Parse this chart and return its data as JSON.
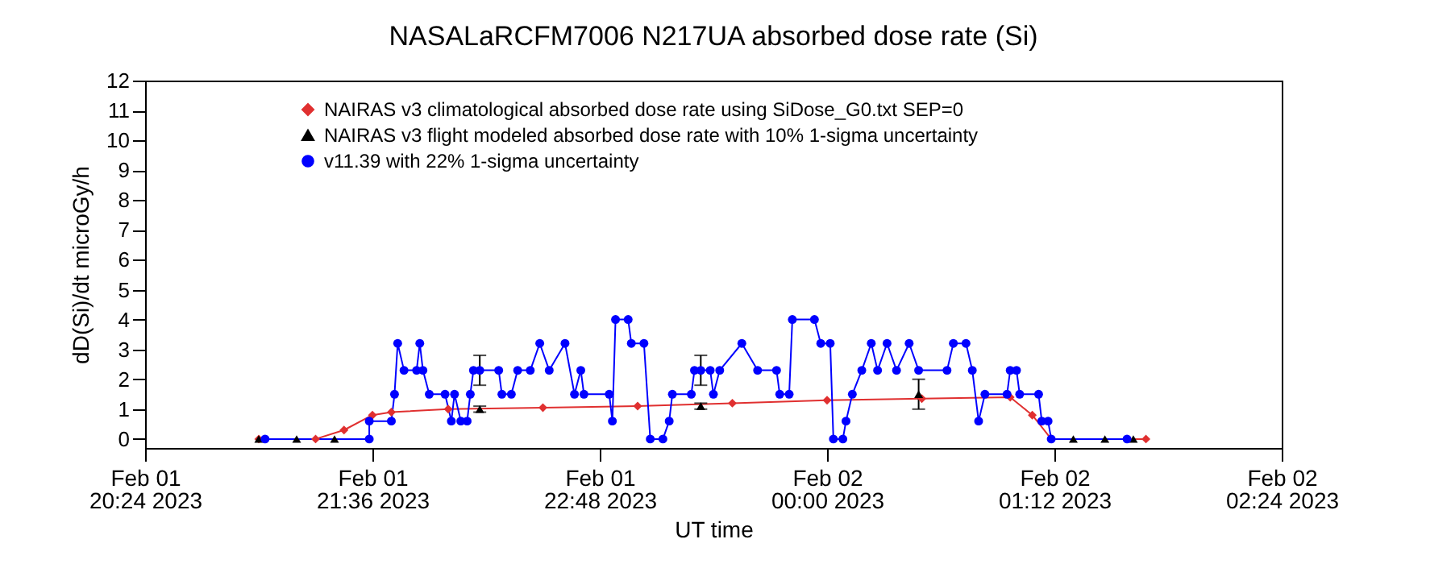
{
  "chart_data": {
    "type": "line",
    "title": "NASALaRCFM7006  N217UA absorbed dose rate (Si)",
    "xlabel": "UT time",
    "ylabel": "dD(Si)/dt microGy/h",
    "xlim": [
      "2023-02-01T20:24",
      "2023-02-02T02:24"
    ],
    "xticks": [
      {
        "value": "2023-02-01T20:24",
        "label": "Feb 01\n20:24 2023"
      },
      {
        "value": "2023-02-01T21:36",
        "label": "Feb 01\n21:36 2023"
      },
      {
        "value": "2023-02-01T22:48",
        "label": "Feb 01\n22:48 2023"
      },
      {
        "value": "2023-02-02T00:00",
        "label": "Feb 02\n00:00 2023"
      },
      {
        "value": "2023-02-02T01:12",
        "label": "Feb 02\n01:12 2023"
      },
      {
        "value": "2023-02-02T02:24",
        "label": "Feb 02\n02:24 2023"
      }
    ],
    "ylim": [
      -0.3,
      12
    ],
    "yticks": [
      0,
      1,
      2,
      3,
      4,
      5,
      6,
      7,
      8,
      9,
      10,
      11,
      12
    ],
    "grid": false,
    "legend": "top left",
    "series": [
      {
        "name": "NAIRAS v3 climatological absorbed dose rate using SiDose_G0.txt SEP=0",
        "marker": "diamond",
        "color": "#e03030",
        "x": [
          "2023-02-01T21:00",
          "2023-02-01T21:18",
          "2023-02-01T21:27",
          "2023-02-01T21:36",
          "2023-02-01T21:42",
          "2023-02-01T22:00",
          "2023-02-01T22:30",
          "2023-02-01T23:00",
          "2023-02-01T23:30",
          "2023-02-02T00:00",
          "2023-02-02T00:30",
          "2023-02-02T00:58",
          "2023-02-02T01:05",
          "2023-02-02T01:11",
          "2023-02-02T01:41"
        ],
        "values": [
          0,
          0,
          0.3,
          0.8,
          0.9,
          1.0,
          1.05,
          1.1,
          1.2,
          1.3,
          1.35,
          1.4,
          0.8,
          0,
          0
        ]
      },
      {
        "name": "NAIRAS v3 flight modeled absorbed dose rate with 10% 1-sigma uncertainty",
        "type": "scatter",
        "marker": "triangle",
        "color": "#000000",
        "x": [
          "2023-02-01T21:00",
          "2023-02-01T21:12",
          "2023-02-01T21:24",
          "2023-02-01T22:10",
          "2023-02-01T23:20",
          "2023-02-02T00:29",
          "2023-02-02T01:18",
          "2023-02-02T01:28",
          "2023-02-02T01:37"
        ],
        "values": [
          0,
          0,
          0,
          1.0,
          1.1,
          1.5,
          0,
          0,
          0
        ],
        "errors": [
          null,
          null,
          null,
          0.1,
          0.1,
          0.5,
          null,
          null,
          null
        ]
      },
      {
        "name": "v11.39 with 22% 1-sigma uncertainty",
        "marker": "circle",
        "color": "#0000ff",
        "x": [
          "2023-02-01T21:02",
          "2023-02-01T21:35",
          "2023-02-01T21:35",
          "2023-02-01T21:42",
          "2023-02-01T21:43",
          "2023-02-01T21:44",
          "2023-02-01T21:46",
          "2023-02-01T21:50",
          "2023-02-01T21:51",
          "2023-02-01T21:52",
          "2023-02-01T21:54",
          "2023-02-01T21:59",
          "2023-02-01T22:01",
          "2023-02-01T22:02",
          "2023-02-01T22:04",
          "2023-02-01T22:06",
          "2023-02-01T22:07",
          "2023-02-01T22:08",
          "2023-02-01T22:10",
          "2023-02-01T22:16",
          "2023-02-01T22:17",
          "2023-02-01T22:20",
          "2023-02-01T22:22",
          "2023-02-01T22:26",
          "2023-02-01T22:29",
          "2023-02-01T22:32",
          "2023-02-01T22:37",
          "2023-02-01T22:40",
          "2023-02-01T22:42",
          "2023-02-01T22:43",
          "2023-02-01T22:51",
          "2023-02-01T22:52",
          "2023-02-01T22:53",
          "2023-02-01T22:57",
          "2023-02-01T22:58",
          "2023-02-01T23:02",
          "2023-02-01T23:04",
          "2023-02-01T23:08",
          "2023-02-01T23:10",
          "2023-02-01T23:11",
          "2023-02-01T23:17",
          "2023-02-01T23:18",
          "2023-02-01T23:20",
          "2023-02-01T23:23",
          "2023-02-01T23:24",
          "2023-02-01T23:26",
          "2023-02-01T23:33",
          "2023-02-01T23:38",
          "2023-02-01T23:44",
          "2023-02-01T23:45",
          "2023-02-01T23:48",
          "2023-02-01T23:49",
          "2023-02-01T23:56",
          "2023-02-01T23:58",
          "2023-02-02T00:01",
          "2023-02-02T00:02",
          "2023-02-02T00:05",
          "2023-02-02T00:06",
          "2023-02-02T00:08",
          "2023-02-02T00:11",
          "2023-02-02T00:14",
          "2023-02-02T00:16",
          "2023-02-02T00:19",
          "2023-02-02T00:22",
          "2023-02-02T00:26",
          "2023-02-02T00:29",
          "2023-02-02T00:38",
          "2023-02-02T00:40",
          "2023-02-02T00:44",
          "2023-02-02T00:46",
          "2023-02-02T00:48",
          "2023-02-02T00:50",
          "2023-02-02T00:57",
          "2023-02-02T00:58",
          "2023-02-02T01:00",
          "2023-02-02T01:01",
          "2023-02-02T01:07",
          "2023-02-02T01:08",
          "2023-02-02T01:10",
          "2023-02-02T01:11",
          "2023-02-02T01:35"
        ],
        "values": [
          0,
          0,
          0.6,
          0.6,
          1.5,
          3.2,
          2.3,
          2.3,
          3.2,
          2.3,
          1.5,
          1.5,
          0.6,
          1.5,
          0.6,
          0.6,
          1.5,
          2.3,
          2.3,
          2.3,
          1.5,
          1.5,
          2.3,
          2.3,
          3.2,
          2.3,
          3.2,
          1.5,
          2.3,
          1.5,
          1.5,
          0.6,
          4.0,
          4.0,
          3.2,
          3.2,
          0,
          0,
          0.6,
          1.5,
          1.5,
          2.3,
          2.3,
          2.3,
          1.5,
          2.3,
          3.2,
          2.3,
          2.3,
          1.5,
          1.5,
          4.0,
          4.0,
          3.2,
          3.2,
          0,
          0,
          0.6,
          1.5,
          2.3,
          3.2,
          2.3,
          3.2,
          2.3,
          3.2,
          2.3,
          2.3,
          3.2,
          3.2,
          2.3,
          0.6,
          1.5,
          1.5,
          2.3,
          2.3,
          1.5,
          1.5,
          0.6,
          0.6,
          0,
          0
        ],
        "errors": [
          null,
          null,
          null,
          null,
          null,
          null,
          null,
          null,
          null,
          null,
          null,
          null,
          null,
          null,
          null,
          null,
          null,
          null,
          0.5,
          null,
          null,
          null,
          null,
          null,
          null,
          null,
          null,
          null,
          null,
          null,
          null,
          null,
          null,
          null,
          null,
          null,
          null,
          null,
          null,
          null,
          null,
          null,
          0.5,
          null,
          null,
          null,
          null,
          null,
          null,
          null,
          null,
          null,
          null,
          null,
          null,
          null,
          null,
          null,
          null,
          null,
          null,
          null,
          null,
          null,
          null,
          null,
          null,
          null,
          null,
          null,
          null,
          null,
          null,
          null,
          null,
          null,
          null,
          null,
          null,
          null,
          null
        ]
      }
    ]
  }
}
